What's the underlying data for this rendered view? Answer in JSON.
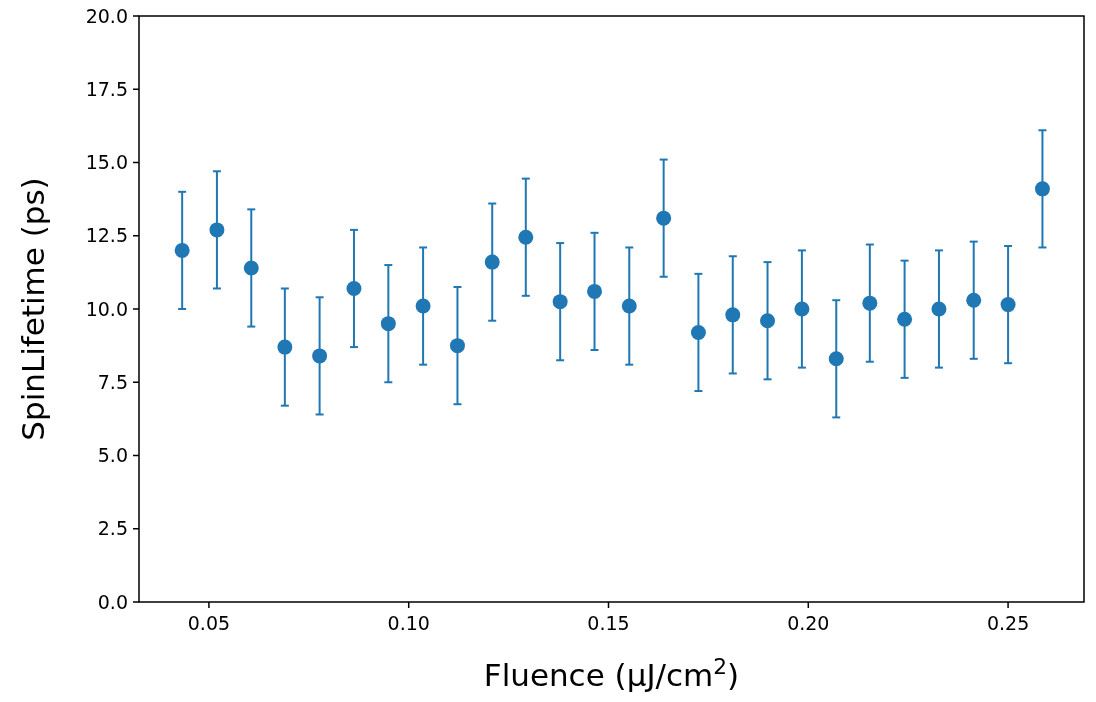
{
  "chart_data": {
    "type": "scatter",
    "xlabel": "Fluence (μJ/cm$^{2}$)",
    "ylabel": "SpinLifetime (ps)",
    "marker": "circle",
    "x": [
      0.0433,
      0.052,
      0.0606,
      0.069,
      0.0777,
      0.0863,
      0.0949,
      0.1036,
      0.1122,
      0.1209,
      0.1293,
      0.1379,
      0.1465,
      0.1552,
      0.1638,
      0.1725,
      0.1811,
      0.1898,
      0.1984,
      0.207,
      0.2154,
      0.2241,
      0.2327,
      0.2414,
      0.25,
      0.2586
    ],
    "series": [
      {
        "color": "#1f77b4",
        "values": [
          12.0,
          12.7,
          11.4,
          8.7,
          8.4,
          10.7,
          9.5,
          10.1,
          8.75,
          11.6,
          12.45,
          10.25,
          10.6,
          10.1,
          13.1,
          9.2,
          9.8,
          9.6,
          10.0,
          8.3,
          10.2,
          9.65,
          10.0,
          10.3,
          10.15,
          14.1
        ],
        "errors": [
          2,
          2,
          2,
          2,
          2,
          2,
          2,
          2,
          2,
          2,
          2,
          2,
          2,
          2,
          2,
          2,
          2,
          2,
          2,
          2,
          2,
          2,
          2,
          2,
          2,
          2
        ]
      }
    ],
    "xlim": [
      0.0325,
      0.269
    ],
    "ylim": [
      0,
      20
    ],
    "xticks": [
      {
        "value": 0.05,
        "label": "0.05"
      },
      {
        "value": 0.1,
        "label": "0.10"
      },
      {
        "value": 0.15,
        "label": "0.15"
      },
      {
        "value": 0.2,
        "label": "0.20"
      },
      {
        "value": 0.25,
        "label": "0.25"
      }
    ],
    "yticks": [
      {
        "value": 0,
        "label": "0.0"
      },
      {
        "value": 2.5,
        "label": "2.5"
      },
      {
        "value": 5,
        "label": "5.0"
      },
      {
        "value": 7.5,
        "label": "7.5"
      },
      {
        "value": 10,
        "label": "10.0"
      },
      {
        "value": 12.5,
        "label": "12.5"
      },
      {
        "value": 15,
        "label": "15.0"
      },
      {
        "value": 17.5,
        "label": "17.5"
      },
      {
        "value": 20,
        "label": "20.0"
      }
    ]
  }
}
